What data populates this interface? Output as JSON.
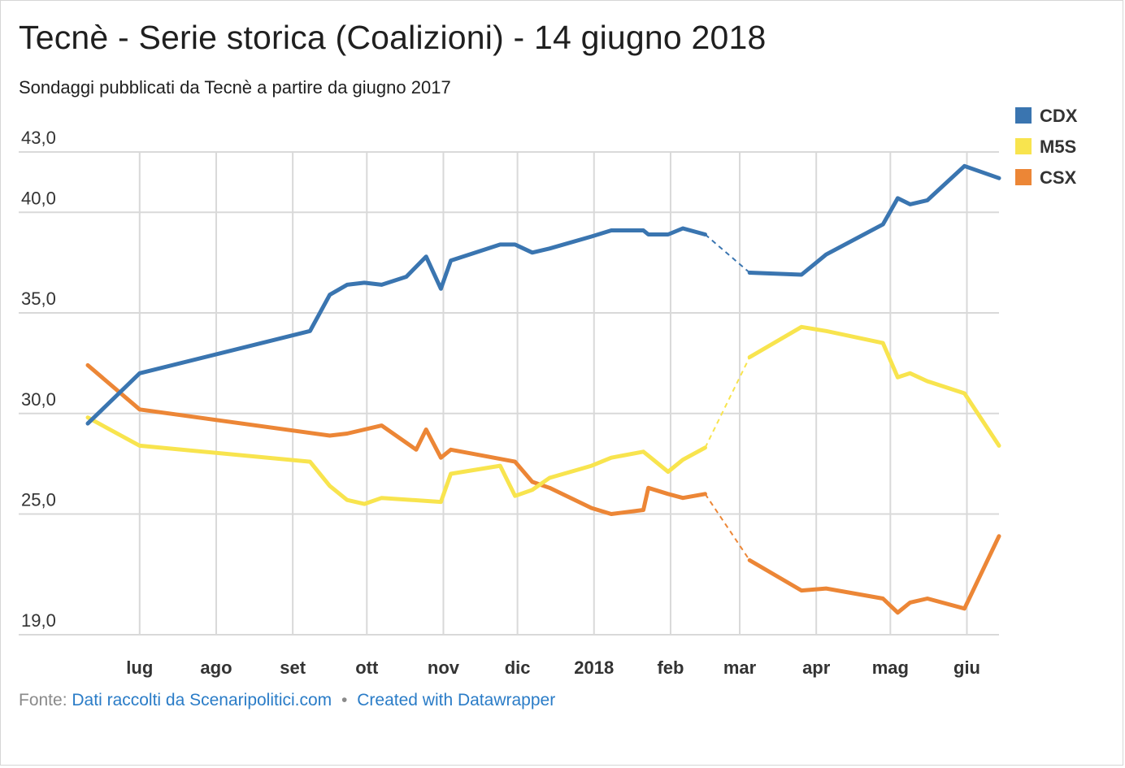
{
  "title": "Tecnè - Serie storica (Coalizioni) - 14 giugno 2018",
  "subtitle": "Sondaggi pubblicati da Tecnè a partire da giugno 2017",
  "footer": {
    "source_prefix": "Fonte:",
    "source_link": "Dati raccolti da Scenaripolitici.com",
    "separator": "•",
    "created_with": "Created with Datawrapper"
  },
  "colors": {
    "CDX": "#3a75b0",
    "M5S": "#f8e44e",
    "CSX": "#ec8636",
    "grid": "#d9d9d9",
    "tick_text": "#333333"
  },
  "chart_data": {
    "type": "line",
    "title": "Tecnè - Serie storica (Coalizioni) - 14 giugno 2018",
    "subtitle": "Sondaggi pubblicati da Tecnè a partire da giugno 2017",
    "ylim": [
      18.9,
      43.0
    ],
    "y_ticks": [
      19.0,
      25.0,
      30.0,
      35.0,
      40.0,
      43.0
    ],
    "y_tick_labels": [
      "19,0",
      "25,0",
      "30,0",
      "35,0",
      "40,0",
      "43,0"
    ],
    "x_ticks": [
      {
        "label": "lug",
        "date": "2017-07-01"
      },
      {
        "label": "ago",
        "date": "2017-08-01"
      },
      {
        "label": "set",
        "date": "2017-09-01"
      },
      {
        "label": "ott",
        "date": "2017-10-01"
      },
      {
        "label": "nov",
        "date": "2017-11-01"
      },
      {
        "label": "dic",
        "date": "2017-12-01"
      },
      {
        "label": "2018",
        "date": "2018-01-01"
      },
      {
        "label": "feb",
        "date": "2018-02-01"
      },
      {
        "label": "mar",
        "date": "2018-03-01"
      },
      {
        "label": "apr",
        "date": "2018-04-01"
      },
      {
        "label": "mag",
        "date": "2018-05-01"
      },
      {
        "label": "giu",
        "date": "2018-06-01"
      }
    ],
    "grid": true,
    "legend_position": "top-right",
    "gap": {
      "from": "2018-02-15",
      "to": "2018-03-05",
      "style": "dashed"
    },
    "series": [
      {
        "name": "CDX",
        "points": [
          [
            "2017-06-10",
            29.5
          ],
          [
            "2017-07-01",
            32.0
          ],
          [
            "2017-09-08",
            34.1
          ],
          [
            "2017-09-16",
            35.9
          ],
          [
            "2017-09-23",
            36.4
          ],
          [
            "2017-09-30",
            36.5
          ],
          [
            "2017-10-07",
            36.4
          ],
          [
            "2017-10-17",
            36.8
          ],
          [
            "2017-10-25",
            37.8
          ],
          [
            "2017-10-31",
            36.2
          ],
          [
            "2017-11-04",
            37.6
          ],
          [
            "2017-11-24",
            38.4
          ],
          [
            "2017-11-30",
            38.4
          ],
          [
            "2017-12-07",
            38.0
          ],
          [
            "2017-12-14",
            38.2
          ],
          [
            "2017-12-31",
            38.8
          ],
          [
            "2018-01-08",
            39.1
          ],
          [
            "2018-01-21",
            39.1
          ],
          [
            "2018-01-23",
            38.9
          ],
          [
            "2018-01-31",
            38.9
          ],
          [
            "2018-02-06",
            39.2
          ],
          [
            "2018-02-15",
            38.9
          ],
          [
            "2018-03-05",
            37.0
          ],
          [
            "2018-03-26",
            36.9
          ],
          [
            "2018-04-05",
            37.9
          ],
          [
            "2018-04-28",
            39.4
          ],
          [
            "2018-05-04",
            40.7
          ],
          [
            "2018-05-09",
            40.4
          ],
          [
            "2018-05-16",
            40.6
          ],
          [
            "2018-05-31",
            42.3
          ],
          [
            "2018-06-14",
            41.7
          ]
        ]
      },
      {
        "name": "M5S",
        "points": [
          [
            "2017-06-10",
            29.8
          ],
          [
            "2017-07-01",
            28.4
          ],
          [
            "2017-09-08",
            27.6
          ],
          [
            "2017-09-16",
            26.4
          ],
          [
            "2017-09-23",
            25.7
          ],
          [
            "2017-09-30",
            25.5
          ],
          [
            "2017-10-07",
            25.8
          ],
          [
            "2017-10-31",
            25.6
          ],
          [
            "2017-11-04",
            27.0
          ],
          [
            "2017-11-24",
            27.4
          ],
          [
            "2017-11-30",
            25.9
          ],
          [
            "2017-12-07",
            26.2
          ],
          [
            "2017-12-14",
            26.8
          ],
          [
            "2017-12-31",
            27.4
          ],
          [
            "2018-01-08",
            27.8
          ],
          [
            "2018-01-21",
            28.1
          ],
          [
            "2018-01-23",
            27.9
          ],
          [
            "2018-01-31",
            27.1
          ],
          [
            "2018-02-06",
            27.7
          ],
          [
            "2018-02-15",
            28.3
          ],
          [
            "2018-03-05",
            32.8
          ],
          [
            "2018-03-26",
            34.3
          ],
          [
            "2018-04-05",
            34.1
          ],
          [
            "2018-04-28",
            33.5
          ],
          [
            "2018-05-04",
            31.8
          ],
          [
            "2018-05-09",
            32.0
          ],
          [
            "2018-05-16",
            31.6
          ],
          [
            "2018-05-31",
            31.0
          ],
          [
            "2018-06-14",
            28.4
          ]
        ]
      },
      {
        "name": "CSX",
        "points": [
          [
            "2017-06-10",
            32.4
          ],
          [
            "2017-07-01",
            30.2
          ],
          [
            "2017-09-16",
            28.9
          ],
          [
            "2017-09-23",
            29.0
          ],
          [
            "2017-10-07",
            29.4
          ],
          [
            "2017-10-21",
            28.2
          ],
          [
            "2017-10-25",
            29.2
          ],
          [
            "2017-10-31",
            27.8
          ],
          [
            "2017-11-04",
            28.2
          ],
          [
            "2017-11-30",
            27.6
          ],
          [
            "2017-12-07",
            26.6
          ],
          [
            "2017-12-14",
            26.3
          ],
          [
            "2017-12-31",
            25.3
          ],
          [
            "2018-01-08",
            25.0
          ],
          [
            "2018-01-21",
            25.2
          ],
          [
            "2018-01-23",
            26.3
          ],
          [
            "2018-01-31",
            26.0
          ],
          [
            "2018-02-06",
            25.8
          ],
          [
            "2018-02-15",
            26.0
          ],
          [
            "2018-03-05",
            22.7
          ],
          [
            "2018-03-26",
            21.2
          ],
          [
            "2018-04-05",
            21.3
          ],
          [
            "2018-04-28",
            20.8
          ],
          [
            "2018-05-04",
            20.1
          ],
          [
            "2018-05-09",
            20.6
          ],
          [
            "2018-05-16",
            20.8
          ],
          [
            "2018-05-31",
            20.3
          ],
          [
            "2018-06-14",
            23.9
          ]
        ]
      }
    ]
  }
}
